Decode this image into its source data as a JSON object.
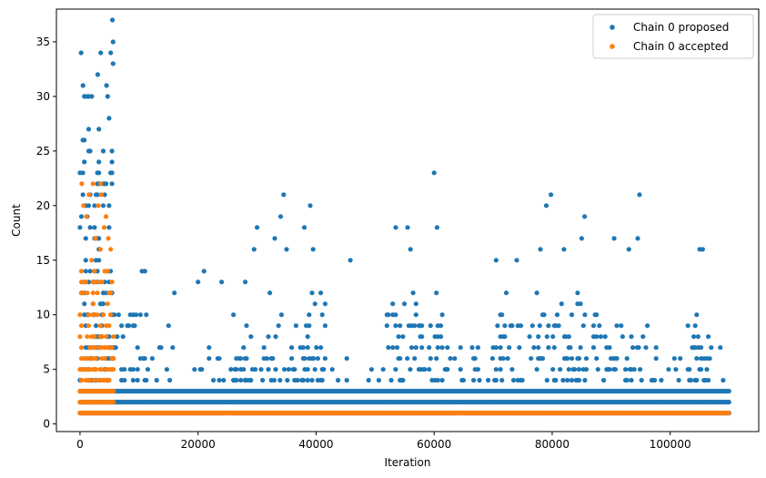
{
  "chart_data": {
    "type": "scatter",
    "title": "",
    "xlabel": "Iteration",
    "ylabel": "Count",
    "xlim": [
      -4000,
      115000
    ],
    "ylim": [
      -0.7,
      38
    ],
    "xticks": [
      0,
      20000,
      40000,
      60000,
      80000,
      100000
    ],
    "yticks": [
      0,
      5,
      10,
      15,
      20,
      25,
      30,
      35
    ],
    "legend_position": "top-right",
    "series": [
      {
        "name": "Chain 0 proposed",
        "color": "#1f77b4",
        "bands": [
          {
            "x0": 0,
            "x1": 5800,
            "ymin": 1,
            "ymax": 31,
            "density": 0.35
          },
          {
            "x0": 5800,
            "x1": 12000,
            "ymin": 1,
            "ymax": 10,
            "density": 0.3
          },
          {
            "x0": 12000,
            "x1": 26000,
            "ymin": 1,
            "ymax": 7,
            "density": 0.3
          },
          {
            "x0": 26000,
            "x1": 42000,
            "ymin": 1,
            "ymax": 12,
            "density": 0.3
          },
          {
            "x0": 42000,
            "x1": 52000,
            "ymin": 1,
            "ymax": 6,
            "density": 0.3
          },
          {
            "x0": 52000,
            "x1": 62000,
            "ymin": 1,
            "ymax": 12,
            "density": 0.3
          },
          {
            "x0": 62000,
            "x1": 70000,
            "ymin": 1,
            "ymax": 7,
            "density": 0.3
          },
          {
            "x0": 70000,
            "x1": 88000,
            "ymin": 1,
            "ymax": 12,
            "density": 0.3
          },
          {
            "x0": 88000,
            "x1": 98000,
            "ymin": 1,
            "ymax": 10,
            "density": 0.3
          },
          {
            "x0": 98000,
            "x1": 103000,
            "ymin": 1,
            "ymax": 6,
            "density": 0.3
          },
          {
            "x0": 103000,
            "x1": 107000,
            "ymin": 1,
            "ymax": 12,
            "density": 0.3
          },
          {
            "x0": 107000,
            "x1": 110000,
            "ymin": 1,
            "ymax": 4,
            "density": 0.3
          }
        ],
        "points": [
          [
            200,
            34
          ],
          [
            500,
            31
          ],
          [
            1200,
            30
          ],
          [
            2000,
            30
          ],
          [
            3000,
            32
          ],
          [
            3500,
            34
          ],
          [
            4500,
            31
          ],
          [
            5200,
            34
          ],
          [
            5500,
            37
          ],
          [
            5600,
            35
          ],
          [
            5600,
            33
          ],
          [
            10500,
            14
          ],
          [
            11000,
            14
          ],
          [
            15000,
            9
          ],
          [
            16000,
            12
          ],
          [
            20000,
            13
          ],
          [
            21000,
            14
          ],
          [
            24000,
            13
          ],
          [
            28000,
            13
          ],
          [
            29500,
            16
          ],
          [
            30000,
            18
          ],
          [
            33000,
            17
          ],
          [
            34000,
            19
          ],
          [
            34500,
            21
          ],
          [
            35000,
            16
          ],
          [
            38000,
            18
          ],
          [
            39000,
            20
          ],
          [
            39500,
            16
          ],
          [
            45800,
            15
          ],
          [
            53500,
            18
          ],
          [
            55500,
            18
          ],
          [
            56000,
            16
          ],
          [
            60000,
            23
          ],
          [
            60500,
            18
          ],
          [
            70500,
            15
          ],
          [
            74000,
            15
          ],
          [
            78000,
            16
          ],
          [
            79000,
            20
          ],
          [
            79800,
            21
          ],
          [
            82000,
            16
          ],
          [
            85000,
            17
          ],
          [
            85500,
            19
          ],
          [
            90500,
            17
          ],
          [
            93000,
            16
          ],
          [
            94500,
            17
          ],
          [
            94800,
            21
          ],
          [
            105000,
            16
          ],
          [
            105500,
            16
          ],
          [
            108500,
            7
          ]
        ]
      },
      {
        "name": "Chain 0 accepted",
        "color": "#ff7f0e",
        "bands": [
          {
            "x0": 0,
            "x1": 5800,
            "ymin": 1,
            "ymax": 16,
            "density": 0.55
          },
          {
            "x0": 5800,
            "x1": 110000,
            "ymin": 1,
            "ymax": 1,
            "density": 1.0
          }
        ],
        "points": [
          [
            300,
            22
          ],
          [
            600,
            20
          ],
          [
            1100,
            19
          ],
          [
            1500,
            21
          ],
          [
            2200,
            22
          ],
          [
            2600,
            17
          ],
          [
            3100,
            20
          ],
          [
            3500,
            22
          ],
          [
            3600,
            21
          ],
          [
            4100,
            18
          ],
          [
            4400,
            19
          ],
          [
            4800,
            17
          ],
          [
            5200,
            16
          ],
          [
            900,
            2
          ],
          [
            1800,
            2
          ],
          [
            4200,
            2
          ]
        ]
      }
    ]
  }
}
